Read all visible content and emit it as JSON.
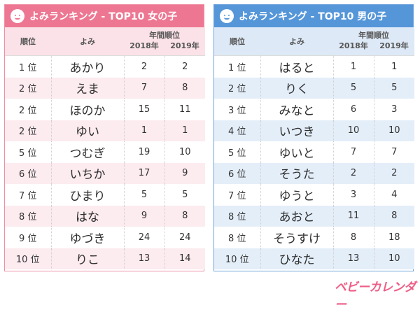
{
  "girls": {
    "title": "よみランキング - TOP10 女の子",
    "headers": {
      "rank": "順位",
      "yomi": "よみ",
      "rank_by_year": "年間順位",
      "y2018": "2018年",
      "y2019": "2019年"
    },
    "rows": [
      {
        "rank": "1 位",
        "yomi": "あかり",
        "y2018": "2",
        "y2019": "2"
      },
      {
        "rank": "2 位",
        "yomi": "えま",
        "y2018": "7",
        "y2019": "8"
      },
      {
        "rank": "2 位",
        "yomi": "ほのか",
        "y2018": "15",
        "y2019": "11"
      },
      {
        "rank": "2 位",
        "yomi": "ゆい",
        "y2018": "1",
        "y2019": "1"
      },
      {
        "rank": "5 位",
        "yomi": "つむぎ",
        "y2018": "19",
        "y2019": "10"
      },
      {
        "rank": "6 位",
        "yomi": "いちか",
        "y2018": "17",
        "y2019": "9"
      },
      {
        "rank": "7 位",
        "yomi": "ひまり",
        "y2018": "5",
        "y2019": "5"
      },
      {
        "rank": "8 位",
        "yomi": "はな",
        "y2018": "9",
        "y2019": "8"
      },
      {
        "rank": "9 位",
        "yomi": "ゆづき",
        "y2018": "24",
        "y2019": "24"
      },
      {
        "rank": "10 位",
        "yomi": "りこ",
        "y2018": "13",
        "y2019": "14"
      }
    ]
  },
  "boys": {
    "title": "よみランキング - TOP10 男の子",
    "headers": {
      "rank": "順位",
      "yomi": "よみ",
      "rank_by_year": "年間順位",
      "y2018": "2018年",
      "y2019": "2019年"
    },
    "rows": [
      {
        "rank": "1 位",
        "yomi": "はると",
        "y2018": "1",
        "y2019": "1"
      },
      {
        "rank": "2 位",
        "yomi": "りく",
        "y2018": "5",
        "y2019": "5"
      },
      {
        "rank": "3 位",
        "yomi": "みなと",
        "y2018": "6",
        "y2019": "3"
      },
      {
        "rank": "4 位",
        "yomi": "いつき",
        "y2018": "10",
        "y2019": "10"
      },
      {
        "rank": "5 位",
        "yomi": "ゆいと",
        "y2018": "7",
        "y2019": "7"
      },
      {
        "rank": "6 位",
        "yomi": "そうた",
        "y2018": "2",
        "y2019": "2"
      },
      {
        "rank": "7 位",
        "yomi": "ゆうと",
        "y2018": "3",
        "y2019": "4"
      },
      {
        "rank": "8 位",
        "yomi": "あおと",
        "y2018": "11",
        "y2019": "8"
      },
      {
        "rank": "8 位",
        "yomi": "そうすけ",
        "y2018": "8",
        "y2019": "18"
      },
      {
        "rank": "10 位",
        "yomi": "ひなた",
        "y2018": "13",
        "y2019": "10"
      }
    ]
  },
  "logo": {
    "text": "ベビーカレンダー"
  },
  "colors": {
    "girls_accent": "#ed7792",
    "boys_accent": "#5596d9",
    "logo": "#ee5d86"
  },
  "icons": {
    "girls_header": "girl-face-icon",
    "boys_header": "boy-face-icon"
  }
}
